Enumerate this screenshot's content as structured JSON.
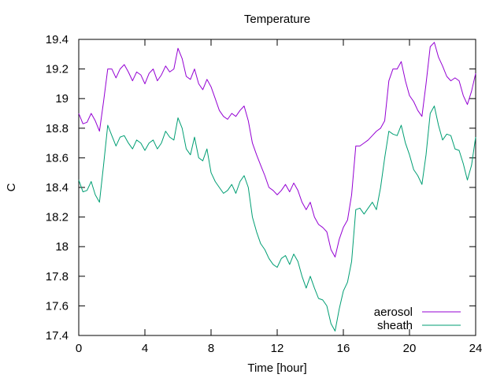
{
  "chart_data": {
    "type": "line",
    "title": "Temperature",
    "xlabel": "Time [hour]",
    "ylabel": "C",
    "xlim": [
      0,
      24
    ],
    "ylim": [
      17.4,
      19.4
    ],
    "xticks": [
      0,
      4,
      8,
      12,
      16,
      20,
      24
    ],
    "xtick_labels": [
      "0",
      "4",
      "8",
      "12",
      "16",
      "20",
      "24"
    ],
    "yticks": [
      17.4,
      17.6,
      17.8,
      18.0,
      18.2,
      18.4,
      18.6,
      18.8,
      19.0,
      19.2,
      19.4
    ],
    "ytick_labels": [
      "17.4",
      "17.6",
      "17.8",
      "18",
      "18.2",
      "18.4",
      "18.6",
      "18.8",
      "19",
      "19.2",
      "19.4"
    ],
    "grid": false,
    "legend_position": "bottom-right",
    "series": [
      {
        "name": "aerosol",
        "color": "#9400d3",
        "x": [
          0,
          0.25,
          0.5,
          0.75,
          1.0,
          1.25,
          1.5,
          1.75,
          2.0,
          2.25,
          2.5,
          2.75,
          3.0,
          3.25,
          3.5,
          3.75,
          4.0,
          4.25,
          4.5,
          4.75,
          5.0,
          5.25,
          5.5,
          5.75,
          6.0,
          6.25,
          6.5,
          6.75,
          7.0,
          7.25,
          7.5,
          7.75,
          8.0,
          8.25,
          8.5,
          8.75,
          9.0,
          9.25,
          9.5,
          9.75,
          10.0,
          10.25,
          10.5,
          10.75,
          11.0,
          11.25,
          11.5,
          11.75,
          12.0,
          12.25,
          12.5,
          12.75,
          13.0,
          13.25,
          13.5,
          13.75,
          14.0,
          14.25,
          14.5,
          14.75,
          15.0,
          15.25,
          15.5,
          15.75,
          16.0,
          16.25,
          16.5,
          16.75,
          17.0,
          17.25,
          17.5,
          17.75,
          18.0,
          18.25,
          18.5,
          18.75,
          19.0,
          19.25,
          19.5,
          19.75,
          20.0,
          20.25,
          20.5,
          20.75,
          21.0,
          21.25,
          21.5,
          21.75,
          22.0,
          22.25,
          22.5,
          22.75,
          23.0,
          23.25,
          23.5,
          23.75,
          24.0
        ],
        "y": [
          18.9,
          18.83,
          18.84,
          18.9,
          18.85,
          18.78,
          18.98,
          19.2,
          19.2,
          19.14,
          19.2,
          19.23,
          19.18,
          19.12,
          19.18,
          19.16,
          19.1,
          19.17,
          19.2,
          19.12,
          19.16,
          19.22,
          19.18,
          19.2,
          19.34,
          19.27,
          19.15,
          19.13,
          19.2,
          19.1,
          19.06,
          19.13,
          19.08,
          19.0,
          18.92,
          18.88,
          18.86,
          18.9,
          18.88,
          18.92,
          18.95,
          18.85,
          18.7,
          18.62,
          18.55,
          18.48,
          18.4,
          18.38,
          18.35,
          18.38,
          18.42,
          18.37,
          18.43,
          18.38,
          18.3,
          18.25,
          18.3,
          18.2,
          18.15,
          18.13,
          18.1,
          17.98,
          17.93,
          18.05,
          18.13,
          18.18,
          18.35,
          18.68,
          18.68,
          18.7,
          18.72,
          18.75,
          18.78,
          18.8,
          18.85,
          19.12,
          19.2,
          19.2,
          19.25,
          19.12,
          19.02,
          18.98,
          18.92,
          18.88,
          19.1,
          19.35,
          19.38,
          19.28,
          19.22,
          19.15,
          19.12,
          19.14,
          19.12,
          19.02,
          18.96,
          19.05,
          19.17
        ]
      },
      {
        "name": "sheath",
        "color": "#009e73",
        "x": [
          0,
          0.25,
          0.5,
          0.75,
          1.0,
          1.25,
          1.5,
          1.75,
          2.0,
          2.25,
          2.5,
          2.75,
          3.0,
          3.25,
          3.5,
          3.75,
          4.0,
          4.25,
          4.5,
          4.75,
          5.0,
          5.25,
          5.5,
          5.75,
          6.0,
          6.25,
          6.5,
          6.75,
          7.0,
          7.25,
          7.5,
          7.75,
          8.0,
          8.25,
          8.5,
          8.75,
          9.0,
          9.25,
          9.5,
          9.75,
          10.0,
          10.25,
          10.5,
          10.75,
          11.0,
          11.25,
          11.5,
          11.75,
          12.0,
          12.25,
          12.5,
          12.75,
          13.0,
          13.25,
          13.5,
          13.75,
          14.0,
          14.25,
          14.5,
          14.75,
          15.0,
          15.25,
          15.5,
          15.75,
          16.0,
          16.25,
          16.5,
          16.75,
          17.0,
          17.25,
          17.5,
          17.75,
          18.0,
          18.25,
          18.5,
          18.75,
          19.0,
          19.25,
          19.5,
          19.75,
          20.0,
          20.25,
          20.5,
          20.75,
          21.0,
          21.25,
          21.5,
          21.75,
          22.0,
          22.25,
          22.5,
          22.75,
          23.0,
          23.25,
          23.5,
          23.75,
          24.0
        ],
        "y": [
          18.45,
          18.37,
          18.38,
          18.44,
          18.35,
          18.3,
          18.55,
          18.82,
          18.75,
          18.68,
          18.74,
          18.75,
          18.7,
          18.66,
          18.72,
          18.7,
          18.65,
          18.7,
          18.72,
          18.66,
          18.7,
          18.78,
          18.74,
          18.72,
          18.87,
          18.8,
          18.66,
          18.62,
          18.74,
          18.6,
          18.58,
          18.66,
          18.5,
          18.44,
          18.4,
          18.36,
          18.38,
          18.42,
          18.36,
          18.44,
          18.48,
          18.4,
          18.2,
          18.1,
          18.02,
          17.98,
          17.92,
          17.88,
          17.86,
          17.92,
          17.94,
          17.88,
          17.95,
          17.9,
          17.8,
          17.72,
          17.8,
          17.72,
          17.65,
          17.64,
          17.6,
          17.48,
          17.43,
          17.58,
          17.7,
          17.76,
          17.9,
          18.25,
          18.26,
          18.22,
          18.26,
          18.3,
          18.25,
          18.4,
          18.6,
          18.78,
          18.76,
          18.75,
          18.82,
          18.7,
          18.62,
          18.52,
          18.48,
          18.42,
          18.62,
          18.9,
          18.95,
          18.82,
          18.72,
          18.76,
          18.75,
          18.66,
          18.65,
          18.56,
          18.45,
          18.55,
          18.74
        ]
      }
    ]
  }
}
